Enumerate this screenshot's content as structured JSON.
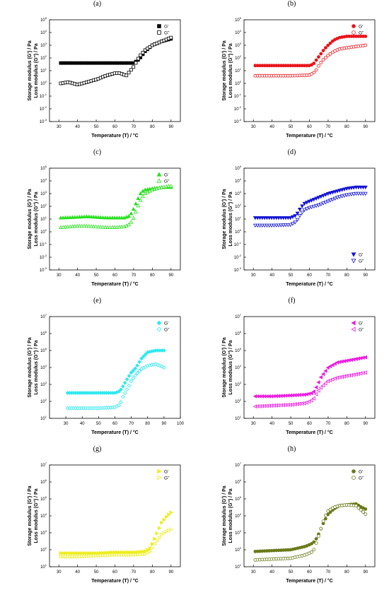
{
  "figure": {
    "ylabel_line1": "Storage modulus (G') / Pa",
    "ylabel_line2": "Loss modulus (G'') / Pa",
    "xlabel": "Temperature (T) / °C"
  },
  "chart_data": [
    {
      "panel": "(a)",
      "type": "scatter",
      "xlabel": "Temperature (T) / °C",
      "ylabel": "Storage modulus (G') / Pa / Loss modulus (G'') / Pa",
      "xlim": [
        25,
        95
      ],
      "ylim": [
        -3,
        5
      ],
      "yscale": "log",
      "xticks": [
        30,
        40,
        50,
        60,
        70,
        80,
        90
      ],
      "ytick_exponents": [
        -3,
        -2,
        -1,
        0,
        1,
        2,
        3,
        4,
        5
      ],
      "legend_position": "top-right",
      "series": [
        {
          "name": "G'",
          "color": "#000000",
          "marker": "square-filled",
          "x": [
            31,
            40,
            50,
            60,
            65,
            70,
            73,
            76,
            80,
            85,
            90
          ],
          "y": [
            1.6,
            1.6,
            1.6,
            1.6,
            1.6,
            1.6,
            1.9,
            2.5,
            3.0,
            3.3,
            3.5
          ]
        },
        {
          "name": "G''",
          "color": "#000000",
          "marker": "square-open",
          "x": [
            31,
            35,
            40,
            45,
            50,
            55,
            60,
            63,
            66,
            70,
            73,
            76,
            80,
            85,
            90
          ],
          "y": [
            0.0,
            0.1,
            -0.1,
            0.1,
            0.3,
            0.6,
            0.8,
            0.8,
            0.6,
            1.3,
            2.1,
            2.6,
            3.0,
            3.3,
            3.6
          ]
        }
      ]
    },
    {
      "panel": "(b)",
      "type": "scatter",
      "xlabel": "Temperature (T) / °C",
      "ylabel": "Storage modulus (G') / Pa / Loss modulus (G'') / Pa",
      "xlim": [
        25,
        95
      ],
      "ylim": [
        -3,
        5
      ],
      "yscale": "log",
      "xticks": [
        30,
        40,
        50,
        60,
        70,
        80,
        90
      ],
      "ytick_exponents": [
        -3,
        -2,
        -1,
        0,
        1,
        2,
        3,
        4,
        5
      ],
      "legend_position": "top-right",
      "series": [
        {
          "name": "G'",
          "color": "#e8141b",
          "marker": "circle-filled",
          "x": [
            31,
            40,
            50,
            60,
            62,
            64,
            66,
            68,
            70,
            73,
            76,
            80,
            85,
            90
          ],
          "y": [
            1.4,
            1.4,
            1.4,
            1.4,
            1.5,
            1.9,
            2.3,
            2.7,
            3.0,
            3.4,
            3.6,
            3.7,
            3.7,
            3.7
          ]
        },
        {
          "name": "G''",
          "color": "#e8141b",
          "marker": "circle-open",
          "x": [
            31,
            40,
            50,
            60,
            63,
            65,
            67,
            70,
            73,
            76,
            80,
            85,
            90
          ],
          "y": [
            0.6,
            0.6,
            0.6,
            0.65,
            0.9,
            1.4,
            1.8,
            2.2,
            2.5,
            2.7,
            2.8,
            2.9,
            3.0
          ]
        }
      ]
    },
    {
      "panel": "(c)",
      "type": "scatter",
      "xlabel": "Temperature (T) / °C",
      "ylabel": "Storage modulus (G') / Pa / Loss modulus (G'') / Pa",
      "xlim": [
        25,
        95
      ],
      "ylim": [
        -3,
        5
      ],
      "yscale": "log",
      "xticks": [
        30,
        40,
        50,
        60,
        70,
        80,
        90
      ],
      "ytick_exponents": [
        -3,
        -2,
        -1,
        0,
        1,
        2,
        3,
        4,
        5
      ],
      "legend_position": "top-right",
      "series": [
        {
          "name": "G'",
          "color": "#28e01d",
          "marker": "triangle-up-filled",
          "x": [
            31,
            40,
            45,
            50,
            55,
            60,
            65,
            68,
            70,
            72,
            74,
            76,
            80,
            85,
            89
          ],
          "y": [
            1.1,
            1.15,
            1.2,
            1.15,
            1.1,
            1.1,
            1.1,
            1.25,
            1.8,
            2.5,
            3.1,
            3.3,
            3.4,
            3.5,
            3.5
          ]
        },
        {
          "name": "G''",
          "color": "#28e01d",
          "marker": "triangle-up-open",
          "x": [
            31,
            40,
            45,
            50,
            55,
            60,
            65,
            68,
            70,
            72,
            74,
            76,
            80,
            85,
            89
          ],
          "y": [
            0.35,
            0.45,
            0.45,
            0.4,
            0.35,
            0.35,
            0.4,
            0.6,
            1.1,
            1.9,
            2.6,
            3.0,
            3.3,
            3.5,
            3.6
          ]
        }
      ]
    },
    {
      "panel": "(d)",
      "type": "scatter",
      "xlabel": "Temperature (T) / °C",
      "ylabel": "Storage modulus (G') / Pa / Loss modulus (G'') / Pa",
      "xlim": [
        25,
        95
      ],
      "ylim": [
        -3,
        5
      ],
      "yscale": "log",
      "xticks": [
        30,
        40,
        50,
        60,
        70,
        80,
        90
      ],
      "ytick_exponents": [
        -3,
        -2,
        -1,
        0,
        1,
        2,
        3,
        4,
        5
      ],
      "legend_position": "bottom-right",
      "series": [
        {
          "name": "G'",
          "color": "#1414d4",
          "marker": "triangle-down-filled",
          "x": [
            31,
            40,
            50,
            53,
            55,
            57,
            60,
            65,
            70,
            75,
            80,
            85,
            90
          ],
          "y": [
            1.1,
            1.1,
            1.1,
            1.3,
            1.8,
            2.2,
            2.4,
            2.7,
            3.0,
            3.2,
            3.4,
            3.5,
            3.5
          ]
        },
        {
          "name": "G''",
          "color": "#1414d4",
          "marker": "triangle-down-open",
          "x": [
            31,
            40,
            50,
            53,
            55,
            57,
            60,
            65,
            70,
            75,
            80,
            85,
            90
          ],
          "y": [
            0.5,
            0.5,
            0.55,
            0.8,
            1.3,
            1.7,
            1.9,
            2.1,
            2.4,
            2.7,
            2.9,
            3.0,
            3.0
          ]
        }
      ]
    },
    {
      "panel": "(e)",
      "type": "scatter",
      "xlabel": "Temperature (T) / °C",
      "ylabel": "Storage modulus (G') / Pa / Loss modulus (G'') / Pa",
      "xlim": [
        20,
        100
      ],
      "ylim": [
        1,
        7
      ],
      "yscale": "log",
      "xticks": [
        30,
        40,
        50,
        60,
        70,
        80,
        90,
        100
      ],
      "ytick_exponents": [
        1,
        2,
        3,
        4,
        5,
        6,
        7
      ],
      "legend_position": "top-right",
      "series": [
        {
          "name": "G'",
          "color": "#2ee8ee",
          "marker": "diamond-filled",
          "x": [
            31,
            40,
            50,
            60,
            63,
            65,
            68,
            70,
            73,
            76,
            80,
            85,
            90
          ],
          "y": [
            2.5,
            2.5,
            2.5,
            2.5,
            2.6,
            2.9,
            3.4,
            3.7,
            4.0,
            4.5,
            4.9,
            5.0,
            5.0
          ]
        },
        {
          "name": "G''",
          "color": "#2ee8ee",
          "marker": "diamond-open",
          "x": [
            31,
            40,
            50,
            60,
            63,
            65,
            68,
            70,
            73,
            76,
            80,
            85,
            90
          ],
          "y": [
            1.6,
            1.6,
            1.6,
            1.65,
            1.8,
            2.3,
            2.8,
            3.2,
            3.6,
            3.9,
            4.1,
            4.2,
            4.0
          ]
        }
      ]
    },
    {
      "panel": "(f)",
      "type": "scatter",
      "xlabel": "Temperature (T) / °C",
      "ylabel": "Storage modulus (G') / Pa / Loss modulus (G'') / Pa",
      "xlim": [
        25,
        95
      ],
      "ylim": [
        1,
        7
      ],
      "yscale": "log",
      "xticks": [
        30,
        40,
        50,
        60,
        70,
        80,
        90
      ],
      "ytick_exponents": [
        1,
        2,
        3,
        4,
        5,
        6,
        7
      ],
      "legend_position": "top-right",
      "series": [
        {
          "name": "G'",
          "color": "#ec1de0",
          "marker": "triangle-left-filled",
          "x": [
            31,
            40,
            50,
            58,
            62,
            64,
            66,
            68,
            70,
            75,
            80,
            85,
            90
          ],
          "y": [
            2.3,
            2.3,
            2.35,
            2.4,
            2.5,
            2.9,
            3.4,
            3.7,
            4.0,
            4.3,
            4.4,
            4.5,
            4.6
          ]
        },
        {
          "name": "G''",
          "color": "#ec1de0",
          "marker": "triangle-left-open",
          "x": [
            31,
            40,
            50,
            58,
            62,
            64,
            66,
            68,
            70,
            75,
            80,
            85,
            90
          ],
          "y": [
            1.7,
            1.75,
            1.8,
            1.9,
            2.1,
            2.5,
            2.8,
            3.0,
            3.2,
            3.4,
            3.5,
            3.6,
            3.7
          ]
        }
      ]
    },
    {
      "panel": "(g)",
      "type": "scatter",
      "xlabel": "Temperature (T) / °C",
      "ylabel": "Storage modulus (G') / Pa / Loss modulus (G'') / Pa",
      "xlim": [
        25,
        95
      ],
      "ylim": [
        1,
        7
      ],
      "yscale": "log",
      "xticks": [
        30,
        40,
        50,
        60,
        70,
        80,
        90
      ],
      "ytick_exponents": [
        1,
        2,
        3,
        4,
        5,
        6,
        7
      ],
      "legend_position": "top-right",
      "series": [
        {
          "name": "G'",
          "color": "#eded1a",
          "marker": "triangle-right-filled",
          "x": [
            31,
            40,
            50,
            60,
            70,
            76,
            79,
            81,
            83,
            85,
            88,
            90
          ],
          "y": [
            1.8,
            1.8,
            1.8,
            1.85,
            1.85,
            1.9,
            2.1,
            2.6,
            3.1,
            3.6,
            4.0,
            4.2
          ]
        },
        {
          "name": "G''",
          "color": "#eded1a",
          "marker": "triangle-right-open",
          "x": [
            31,
            40,
            50,
            60,
            70,
            76,
            79,
            81,
            83,
            85,
            88,
            90
          ],
          "y": [
            1.6,
            1.6,
            1.65,
            1.7,
            1.7,
            1.75,
            1.9,
            2.3,
            2.6,
            2.9,
            3.1,
            3.2
          ]
        }
      ]
    },
    {
      "panel": "(h)",
      "type": "scatter",
      "xlabel": "Temperature (T) / °C",
      "ylabel": "Storage modulus (G') / Pa / Loss modulus (G'') / Pa",
      "xlim": [
        25,
        95
      ],
      "ylim": [
        1,
        7
      ],
      "yscale": "log",
      "xticks": [
        30,
        40,
        50,
        60,
        70,
        80,
        90
      ],
      "ytick_exponents": [
        1,
        2,
        3,
        4,
        5,
        6,
        7
      ],
      "legend_position": "top-right",
      "series": [
        {
          "name": "G'",
          "color": "#6b7a1a",
          "marker": "circle-filled",
          "x": [
            31,
            40,
            50,
            58,
            62,
            64,
            66,
            68,
            70,
            73,
            76,
            80,
            85,
            88,
            90
          ],
          "y": [
            1.9,
            1.95,
            2.0,
            2.2,
            2.4,
            2.7,
            3.2,
            3.7,
            4.1,
            4.4,
            4.6,
            4.65,
            4.7,
            4.5,
            4.4
          ]
        },
        {
          "name": "G''",
          "color": "#6b7a1a",
          "marker": "circle-open",
          "x": [
            31,
            40,
            50,
            58,
            62,
            64,
            66,
            68,
            70,
            73,
            76,
            80,
            85,
            88,
            90
          ],
          "y": [
            1.4,
            1.45,
            1.5,
            1.7,
            1.9,
            2.5,
            3.2,
            3.9,
            4.3,
            4.5,
            4.6,
            4.65,
            4.6,
            4.3,
            4.1
          ]
        }
      ]
    }
  ]
}
